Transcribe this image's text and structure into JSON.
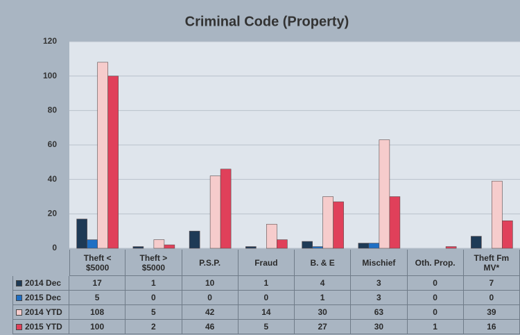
{
  "chart_data": {
    "type": "bar",
    "title": "Criminal Code (Property)",
    "categories": [
      "Theft < $5000",
      "Theft > $5000",
      "P.S.P.",
      "Fraud",
      "B. & E",
      "Mischief",
      "Oth. Prop.",
      "Theft Fm MV*"
    ],
    "series": [
      {
        "name": "2014 Dec",
        "color": "#1e3a56",
        "values": [
          17,
          1,
          10,
          1,
          4,
          3,
          0,
          7
        ]
      },
      {
        "name": "2015 Dec",
        "color": "#1f6fc4",
        "values": [
          5,
          0,
          0,
          0,
          1,
          3,
          0,
          0
        ]
      },
      {
        "name": "2014 YTD",
        "color": "#f6cccc",
        "values": [
          108,
          5,
          42,
          14,
          30,
          63,
          0,
          39
        ]
      },
      {
        "name": "2015 YTD",
        "color": "#e0405a",
        "values": [
          100,
          2,
          46,
          5,
          27,
          30,
          1,
          16
        ]
      }
    ],
    "ylim": [
      0,
      120
    ],
    "yticks": [
      0,
      20,
      40,
      60,
      80,
      100,
      120
    ],
    "grid": true
  }
}
